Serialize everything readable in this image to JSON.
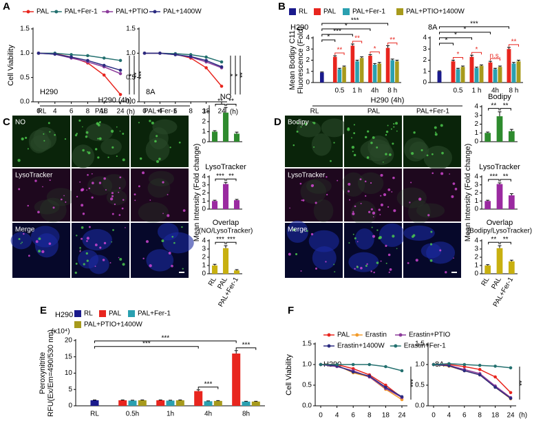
{
  "panels": [
    "A",
    "B",
    "C",
    "D",
    "E",
    "F"
  ],
  "images": [
    {
      "title": "H290 (4h)",
      "columns": [
        "RL",
        "PAL",
        "PAL+Fer-1"
      ],
      "rows": [
        "NO",
        "LysoTracker",
        "Merge"
      ]
    },
    {
      "title": "H290 (4h)",
      "columns": [
        "RL",
        "PAL",
        "PAL+Fer-1"
      ],
      "rows": [
        "Bodipy",
        "LysoTracker",
        "Merge"
      ]
    }
  ],
  "chart_data": [
    {
      "type": "line",
      "title": "H290",
      "ylabel": "Cell Viability",
      "xlabel": "(h)",
      "categories": [
        "0",
        "4",
        "6",
        "8",
        "18",
        "24"
      ],
      "series": [
        {
          "name": "PAL",
          "color": "#e8251e",
          "values": [
            1,
            0.99,
            0.92,
            0.8,
            0.55,
            0.15
          ]
        },
        {
          "name": "PAL+Fer-1",
          "color": "#23706f",
          "values": [
            1,
            1,
            0.97,
            0.95,
            0.9,
            0.85
          ]
        },
        {
          "name": "PAL+PTIO",
          "color": "#8b3a9a",
          "values": [
            1,
            0.98,
            0.9,
            0.82,
            0.72,
            0.58
          ]
        },
        {
          "name": "PAL+1400W",
          "color": "#2b2b80",
          "values": [
            1,
            0.98,
            0.92,
            0.85,
            0.75,
            0.65
          ]
        }
      ],
      "ylim": [
        0,
        1.5
      ],
      "yticks": [
        {
          "value": 0,
          "label": "0.0"
        },
        0.5,
        {
          "value": 1,
          "label": "1.0"
        },
        1.5
      ],
      "legend": "top",
      "annotations": [
        "*",
        "**",
        "***"
      ]
    },
    {
      "type": "line",
      "title": "8A",
      "xlabel": "(h)",
      "categories": [
        "0",
        "4",
        "6",
        "8",
        "18",
        "24"
      ],
      "series": [
        {
          "color": "#e8251e",
          "values": [
            1,
            1,
            0.98,
            0.9,
            0.7,
            0.32
          ]
        },
        {
          "color": "#23706f",
          "values": [
            1,
            1,
            0.99,
            0.97,
            0.92,
            0.82
          ]
        },
        {
          "color": "#8b3a9a",
          "values": [
            1,
            1,
            0.97,
            0.92,
            0.82,
            0.7
          ]
        },
        {
          "color": "#2b2b80",
          "values": [
            1,
            1,
            0.97,
            0.93,
            0.85,
            0.72
          ]
        }
      ],
      "ylim": [
        0,
        1.5
      ],
      "yticks": [
        {
          "value": 0,
          "label": "0.0"
        },
        0.5,
        {
          "value": 1,
          "label": "1.0"
        },
        1.5
      ],
      "annotations": [
        "*",
        "*",
        "**"
      ]
    },
    {
      "type": "bar",
      "title": "H290",
      "ylabel": [
        "Mean Bodipy C11",
        "Fluorescence (Fold)"
      ],
      "categories": [
        null,
        "0.5",
        "1 h",
        "4h",
        "8 h"
      ],
      "series": [
        {
          "name": "RL",
          "color": "#1a1a8c",
          "values": [
            0.9,
            null,
            null,
            null,
            null
          ],
          "errors": [
            0.05,
            null,
            null,
            null,
            null
          ]
        },
        {
          "name": "PAL",
          "color": "#e8251e",
          "values": [
            null,
            2.3,
            3.3,
            2.4,
            3.1
          ],
          "errors": [
            null,
            0.1,
            0.15,
            0.1,
            0.2
          ]
        },
        {
          "name": "PAL+Fer-1",
          "color": "#2aa0b0",
          "values": [
            null,
            1.2,
            1.9,
            1.6,
            2.0
          ],
          "errors": [
            null,
            0.08,
            0.1,
            0.1,
            0.1
          ]
        },
        {
          "name": "PAL+PTIO+1400W",
          "color": "#a79a1c",
          "values": [
            null,
            1.4,
            2.2,
            1.7,
            1.9
          ],
          "errors": [
            null,
            0.08,
            0.1,
            0.1,
            0.1
          ]
        }
      ],
      "ylim": [
        0,
        4
      ],
      "yticks": [
        0,
        1,
        2,
        3,
        4
      ],
      "legend": "top",
      "significance": [
        "*",
        "***",
        "*",
        "***"
      ],
      "significance_inner": [
        "**",
        "**",
        "*",
        "**"
      ],
      "significance_inner_color": "#e8251e"
    },
    {
      "type": "bar",
      "title": "8A",
      "categories": [
        null,
        "0.5",
        "1 h",
        "4h",
        "8 h"
      ],
      "series": [
        {
          "color": "#1a1a8c",
          "values": [
            1.0,
            null,
            null,
            null,
            null
          ],
          "errors": [
            0.05,
            null,
            null,
            null,
            null
          ]
        },
        {
          "color": "#e8251e",
          "values": [
            null,
            1.9,
            2.3,
            1.8,
            3.0
          ],
          "errors": [
            null,
            0.1,
            0.15,
            0.1,
            0.15
          ]
        },
        {
          "color": "#2aa0b0",
          "values": [
            null,
            1.2,
            1.3,
            1.2,
            1.7
          ],
          "errors": [
            null,
            0.08,
            0.08,
            0.08,
            0.1
          ]
        },
        {
          "color": "#a79a1c",
          "values": [
            null,
            1.4,
            1.5,
            1.4,
            1.9
          ],
          "errors": [
            null,
            0.08,
            0.08,
            0.08,
            0.1
          ]
        }
      ],
      "ylim": [
        0,
        4
      ],
      "yticks": [
        0,
        1,
        2,
        3,
        4
      ],
      "significance": [
        "*",
        "*",
        "*",
        "***"
      ],
      "significance_inner": [
        "*",
        "*",
        "n.s.",
        "**"
      ],
      "significance_inner_color": "#e8251e"
    },
    {
      "type": "bar",
      "title": "NO",
      "categories": [
        null,
        null,
        null
      ],
      "values": [
        1,
        2.9,
        0.8
      ],
      "errors": [
        0.1,
        0.5,
        0.15
      ],
      "color": "#2e8b2e",
      "ylim": [
        0,
        3.5
      ],
      "yticks": [
        0,
        1,
        2,
        3
      ],
      "pair_significance": [
        "**",
        "**"
      ]
    },
    {
      "type": "bar",
      "title": "LysoTracker",
      "ylabel": "Mean Intensity (Fold change)",
      "categories": [
        null,
        null,
        null
      ],
      "values": [
        1,
        3.1,
        1.1
      ],
      "errors": [
        0.1,
        0.2,
        0.1
      ],
      "color": "#9a2aa0",
      "ylim": [
        0,
        4
      ],
      "yticks": [
        0,
        1,
        2,
        3,
        4
      ],
      "pair_significance": [
        "***",
        "**"
      ]
    },
    {
      "type": "bar",
      "title": "Overlap",
      "subtitle": "(NO/LysoTracker)",
      "categories": [
        "RL",
        "PAL",
        "PAL+Fer-1"
      ],
      "values": [
        1,
        3.1,
        0.4
      ],
      "errors": [
        0.15,
        0.3,
        0.1
      ],
      "color": "#c8b010",
      "ylim": [
        0,
        4
      ],
      "yticks": [
        0,
        1,
        2,
        3,
        4
      ],
      "pair_significance": [
        "***",
        "***"
      ]
    },
    {
      "type": "bar",
      "title": "Bodipy",
      "categories": [
        null,
        null,
        null
      ],
      "values": [
        1,
        2.9,
        1.2
      ],
      "errors": [
        0.1,
        0.5,
        0.2
      ],
      "color": "#2e8b2e",
      "ylim": [
        0,
        4
      ],
      "yticks": [
        0,
        1,
        2,
        3,
        4
      ],
      "pair_significance": [
        "**",
        "**"
      ]
    },
    {
      "type": "bar",
      "title": "LysoTracker",
      "ylabel": "Mean Intensity (Fold change)",
      "categories": [
        null,
        null,
        null
      ],
      "values": [
        1,
        3.1,
        1.7
      ],
      "errors": [
        0.1,
        0.15,
        0.2
      ],
      "color": "#9a2aa0",
      "ylim": [
        0,
        4
      ],
      "yticks": [
        0,
        1,
        2,
        3,
        4
      ],
      "pair_significance": [
        "***",
        "**"
      ]
    },
    {
      "type": "bar",
      "title": "Overlap",
      "subtitle": "(Bodipy/LysoTracker)",
      "categories": [
        "RL",
        "PAL",
        "PAL+Fer-1"
      ],
      "values": [
        1,
        3.1,
        1.5
      ],
      "errors": [
        0.1,
        0.3,
        0.15
      ],
      "color": "#c8b010",
      "ylim": [
        0,
        4
      ],
      "yticks": [
        0,
        1,
        2,
        3,
        4
      ],
      "pair_significance": [
        "**",
        "**"
      ]
    },
    {
      "type": "bar",
      "title": "H290",
      "ylabel": [
        "Peroxynitrite",
        "RFU(Ex/Em=490/530 nm)"
      ],
      "yunit": "(x10⁴)",
      "categories": [
        "RL",
        "0.5h",
        "1h",
        "4h",
        "8h"
      ],
      "series": [
        {
          "name": "RL",
          "color": "#1a1a8c",
          "values": [
            1.7,
            null,
            null,
            null,
            null
          ],
          "errors": [
            0.1,
            null,
            null,
            null,
            null
          ]
        },
        {
          "name": "PAL",
          "color": "#e8251e",
          "values": [
            null,
            1.7,
            1.7,
            4.5,
            16
          ],
          "errors": [
            null,
            0.1,
            0.1,
            0.4,
            0.9
          ]
        },
        {
          "name": "PAL+Fer-1",
          "color": "#2aa0b0",
          "values": [
            null,
            1.6,
            1.6,
            1.4,
            1.3
          ],
          "errors": [
            null,
            0.1,
            0.1,
            0.1,
            0.1
          ]
        },
        {
          "name": "PAL+PTIO+1400W",
          "color": "#a79a1c",
          "values": [
            null,
            1.7,
            1.7,
            1.5,
            1.3
          ],
          "errors": [
            null,
            0.1,
            0.1,
            0.1,
            0.1
          ]
        }
      ],
      "ylim": [
        0,
        20
      ],
      "yticks": [
        0,
        5,
        10,
        15,
        20
      ],
      "legend": "top",
      "significance": [
        null,
        null,
        "***",
        "***"
      ],
      "significance_inner": [
        null,
        null,
        "***",
        "***"
      ],
      "significance_inner_color": "#000000"
    },
    {
      "type": "line",
      "title": "H290",
      "ylabel": "Cell Viability",
      "categories": [
        "0",
        "4",
        "6",
        "8",
        "18",
        "24"
      ],
      "series": [
        {
          "name": "PAL",
          "color": "#e8251e",
          "values": [
            1,
            1,
            0.9,
            0.75,
            0.5,
            0.2
          ]
        },
        {
          "name": "Erastin",
          "color": "#f39c2a",
          "values": [
            1,
            0.98,
            0.8,
            0.7,
            0.4,
            0.15
          ]
        },
        {
          "name": "Erastin+PTIO",
          "color": "#8b3a9a",
          "values": [
            1,
            0.95,
            0.85,
            0.7,
            0.42,
            0.2
          ]
        },
        {
          "name": "Erastin+1400W",
          "color": "#2b2b80",
          "values": [
            1,
            0.97,
            0.82,
            0.72,
            0.45,
            0.22
          ]
        },
        {
          "name": "Erastin+Fer-1",
          "color": "#23706f",
          "values": [
            1,
            1,
            1,
            1,
            0.95,
            0.85
          ]
        }
      ],
      "ylim": [
        0,
        1.5
      ],
      "yticks": [
        {
          "value": 0,
          "label": "0.0"
        },
        0.5,
        {
          "value": 1,
          "label": "1.0"
        },
        1.5
      ],
      "legend": "top",
      "annotations": [
        "***"
      ]
    },
    {
      "type": "line",
      "title": "8A",
      "xlabel": "(h)",
      "categories": [
        "0",
        "4",
        "6",
        "8",
        "18",
        "24"
      ],
      "series": [
        {
          "color": "#e8251e",
          "values": [
            1,
            1,
            0.95,
            0.88,
            0.7,
            0.32
          ]
        },
        {
          "color": "#f39c2a",
          "values": [
            1,
            0.96,
            0.85,
            0.75,
            0.45,
            0.17
          ]
        },
        {
          "color": "#8b3a9a",
          "values": [
            1,
            0.98,
            0.88,
            0.78,
            0.48,
            0.2
          ]
        },
        {
          "color": "#2b2b80",
          "values": [
            1,
            0.97,
            0.85,
            0.75,
            0.45,
            0.18
          ]
        },
        {
          "color": "#23706f",
          "values": [
            1,
            1.02,
            1,
            0.98,
            0.96,
            0.92
          ]
        }
      ],
      "ylim": [
        0,
        1.5
      ],
      "yticks": [
        {
          "value": 0,
          "label": "0.0"
        },
        0.5,
        {
          "value": 1,
          "label": "1.0"
        },
        1.5
      ],
      "annotations": [
        "**"
      ]
    }
  ]
}
